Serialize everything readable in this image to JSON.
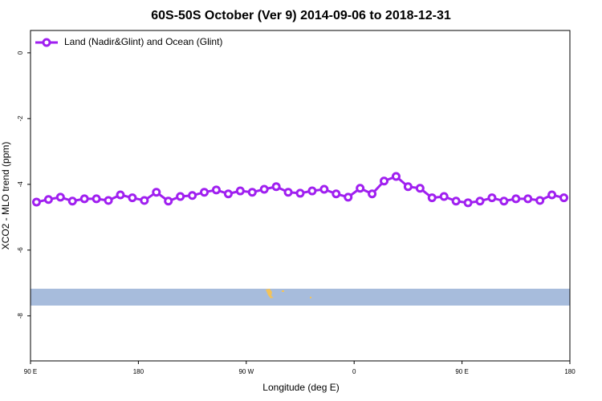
{
  "chart_data": {
    "type": "line",
    "title": "60S-50S October (Ver 9)   2014-09-06 to 2018-12-31",
    "xlabel": "Longitude (deg E)",
    "ylabel": "XCO2 - MLO trend (ppm)",
    "x": [
      95,
      105,
      115,
      125,
      135,
      145,
      155,
      165,
      175,
      185,
      195,
      205,
      215,
      225,
      235,
      245,
      255,
      265,
      275,
      285,
      295,
      305,
      315,
      325,
      335,
      345,
      355,
      365,
      375,
      385,
      395,
      405,
      415,
      425,
      435,
      445,
      455,
      465,
      475,
      485,
      495,
      505,
      515,
      525,
      535
    ],
    "series": [
      {
        "name": "Land (Nadir&Glint) and Ocean (Glint)",
        "color": "#a020f0",
        "values": [
          -4.54,
          -4.46,
          -4.39,
          -4.51,
          -4.44,
          -4.44,
          -4.49,
          -4.32,
          -4.41,
          -4.49,
          -4.24,
          -4.51,
          -4.37,
          -4.34,
          -4.24,
          -4.17,
          -4.29,
          -4.2,
          -4.24,
          -4.15,
          -4.07,
          -4.24,
          -4.27,
          -4.2,
          -4.15,
          -4.29,
          -4.39,
          -4.12,
          -4.29,
          -3.9,
          -3.76,
          -4.07,
          -4.12,
          -4.41,
          -4.37,
          -4.51,
          -4.56,
          -4.51,
          -4.41,
          -4.51,
          -4.44,
          -4.44,
          -4.49,
          -4.32,
          -4.41
        ]
      }
    ],
    "xlim": [
      90,
      540
    ],
    "xticks": [
      {
        "value": 90,
        "label": "90 E"
      },
      180,
      {
        "value": 270,
        "label": "90 W"
      },
      {
        "value": 360,
        "label": "0"
      },
      {
        "value": 450,
        "label": "90 E"
      },
      {
        "value": 540,
        "label": "180"
      }
    ],
    "ylim": [
      -9.37,
      0.68
    ],
    "yticks": [
      0,
      -2,
      -4,
      -6,
      -8
    ],
    "legend": "top-left"
  }
}
